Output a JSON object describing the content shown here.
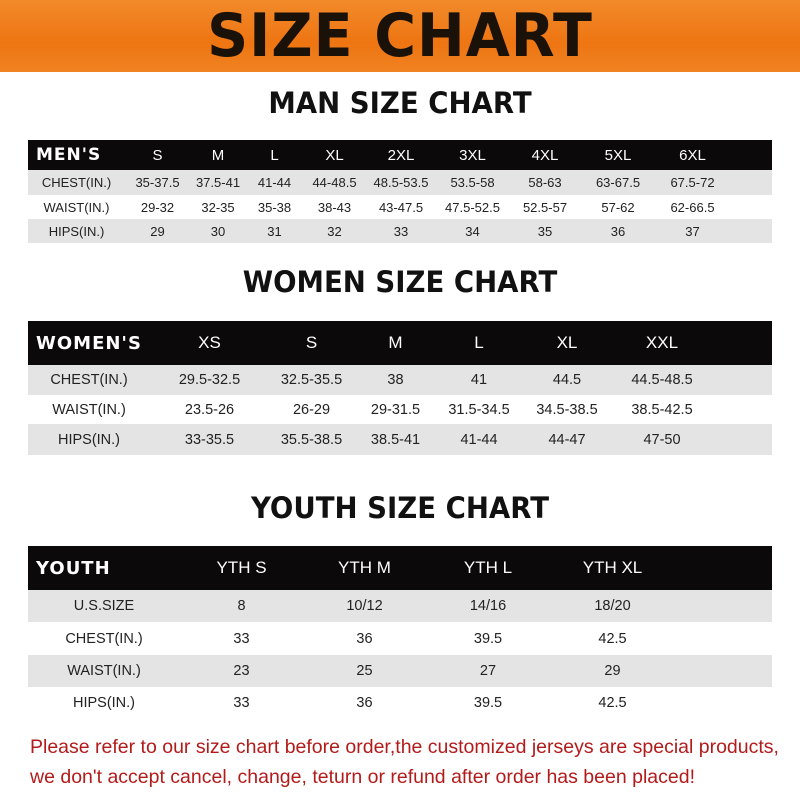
{
  "title": "SIZE CHART",
  "men": {
    "heading": "MAN SIZE CHART",
    "header": [
      "MEN'S",
      "S",
      "M",
      "L",
      "XL",
      "2XL",
      "3XL",
      "4XL",
      "5XL",
      "6XL"
    ],
    "rows": [
      [
        "CHEST(IN.)",
        "35-37.5",
        "37.5-41",
        "41-44",
        "44-48.5",
        "48.5-53.5",
        "53.5-58",
        "58-63",
        "63-67.5",
        "67.5-72"
      ],
      [
        "WAIST(IN.)",
        "29-32",
        "32-35",
        "35-38",
        "38-43",
        "43-47.5",
        "47.5-52.5",
        "52.5-57",
        "57-62",
        "62-66.5"
      ],
      [
        "HIPS(IN.)",
        "29",
        "30",
        "31",
        "32",
        "33",
        "34",
        "35",
        "36",
        "37"
      ]
    ]
  },
  "women": {
    "heading": "WOMEN SIZE CHART",
    "header": [
      "WOMEN'S",
      "XS",
      "S",
      "M",
      "L",
      "XL",
      "XXL"
    ],
    "rows": [
      [
        "CHEST(IN.)",
        "29.5-32.5",
        "32.5-35.5",
        "38",
        "41",
        "44.5",
        "44.5-48.5"
      ],
      [
        "WAIST(IN.)",
        "23.5-26",
        "26-29",
        "29-31.5",
        "31.5-34.5",
        "34.5-38.5",
        "38.5-42.5"
      ],
      [
        "HIPS(IN.)",
        "33-35.5",
        "35.5-38.5",
        "38.5-41",
        "41-44",
        "44-47",
        "47-50"
      ]
    ]
  },
  "youth": {
    "heading": "YOUTH SIZE CHART",
    "header": [
      "YOUTH",
      "YTH S",
      "YTH M",
      "YTH L",
      "YTH XL"
    ],
    "rows": [
      [
        "U.S.SIZE",
        "8",
        "10/12",
        "14/16",
        "18/20"
      ],
      [
        "CHEST(IN.)",
        "33",
        "36",
        "39.5",
        "42.5"
      ],
      [
        "WAIST(IN.)",
        "23",
        "25",
        "27",
        "29"
      ],
      [
        "HIPS(IN.)",
        "33",
        "36",
        "39.5",
        "42.5"
      ]
    ]
  },
  "notice": [
    "Please refer to our size chart before order,the customized jerseys are special products,",
    "we don't accept cancel, change, teturn or refund after order has been placed!"
  ],
  "colors": {
    "banner": "#ee7512",
    "header_bg": "#0b0909",
    "stripe": "#e4e4e4",
    "notice": "#b31b1b"
  }
}
